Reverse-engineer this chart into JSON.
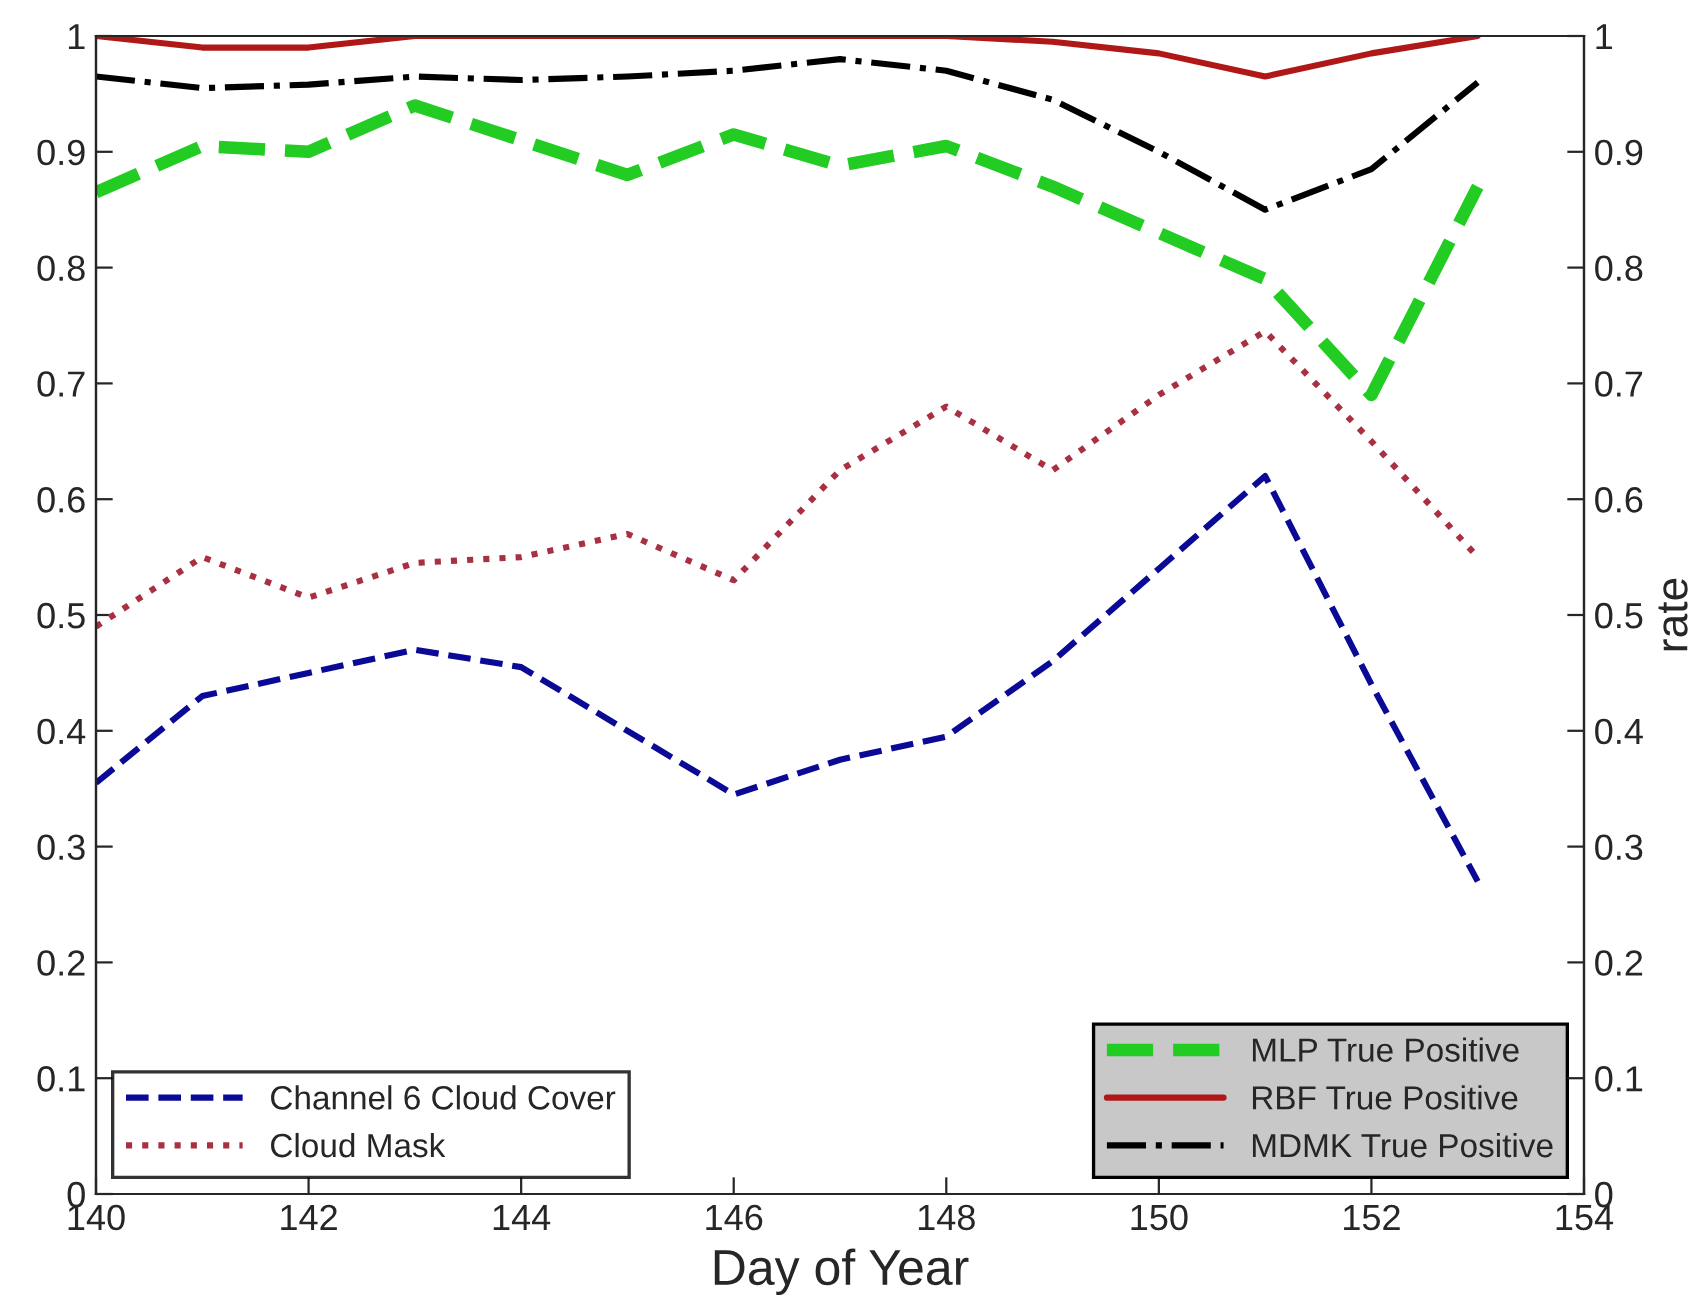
{
  "chart_data": {
    "type": "line",
    "xlabel": "Day of Year",
    "y2label": "rate",
    "x": [
      140,
      141,
      142,
      143,
      144,
      145,
      146,
      147,
      148,
      149,
      150,
      151,
      152,
      153
    ],
    "xlim": [
      140,
      154
    ],
    "xticks": [
      140,
      142,
      144,
      146,
      148,
      150,
      152,
      154
    ],
    "ylim": [
      0,
      1
    ],
    "yticks": [
      0,
      0.1,
      0.2,
      0.3,
      0.4,
      0.5,
      0.6,
      0.7,
      0.8,
      0.9,
      1
    ],
    "y2lim": [
      0,
      1
    ],
    "y2ticks": [
      0,
      0.1,
      0.2,
      0.3,
      0.4,
      0.5,
      0.6,
      0.7,
      0.8,
      0.9,
      1
    ],
    "grid": false,
    "legend": "bottom",
    "marker": "none",
    "series": [
      {
        "name": "Channel 6 Cloud Cover",
        "color": "#0a0a96",
        "line_style": "dashed",
        "values": [
          0.355,
          0.43,
          0.45,
          0.47,
          0.455,
          0.4,
          0.345,
          0.375,
          0.395,
          0.46,
          0.54,
          0.62,
          0.44,
          0.27
        ]
      },
      {
        "name": "Cloud Mask",
        "color": "#a83040",
        "line_style": "dotted",
        "values": [
          0.49,
          0.55,
          0.515,
          0.545,
          0.55,
          0.57,
          0.53,
          0.625,
          0.68,
          0.625,
          0.69,
          0.745,
          0.65,
          0.55
        ]
      },
      {
        "name": "MLP True Positive",
        "color": "#22cc22",
        "line_style": "dashed",
        "values": [
          0.865,
          0.905,
          0.9,
          0.94,
          0.91,
          0.88,
          0.915,
          0.888,
          0.905,
          0.87,
          0.83,
          0.79,
          0.69,
          0.87
        ]
      },
      {
        "name": "RBF True Positive",
        "color": "#b01818",
        "line_style": "solid",
        "values": [
          1,
          0.99,
          0.99,
          1,
          1,
          1,
          1,
          1,
          1,
          0.995,
          0.985,
          0.965,
          0.985,
          1
        ]
      },
      {
        "name": "MDMK True Positive",
        "color": "#000000",
        "line_style": "dashdot",
        "values": [
          0.965,
          0.955,
          0.958,
          0.965,
          0.962,
          0.965,
          0.97,
          0.98,
          0.97,
          0.945,
          0.9,
          0.85,
          0.885,
          0.96
        ]
      }
    ]
  }
}
